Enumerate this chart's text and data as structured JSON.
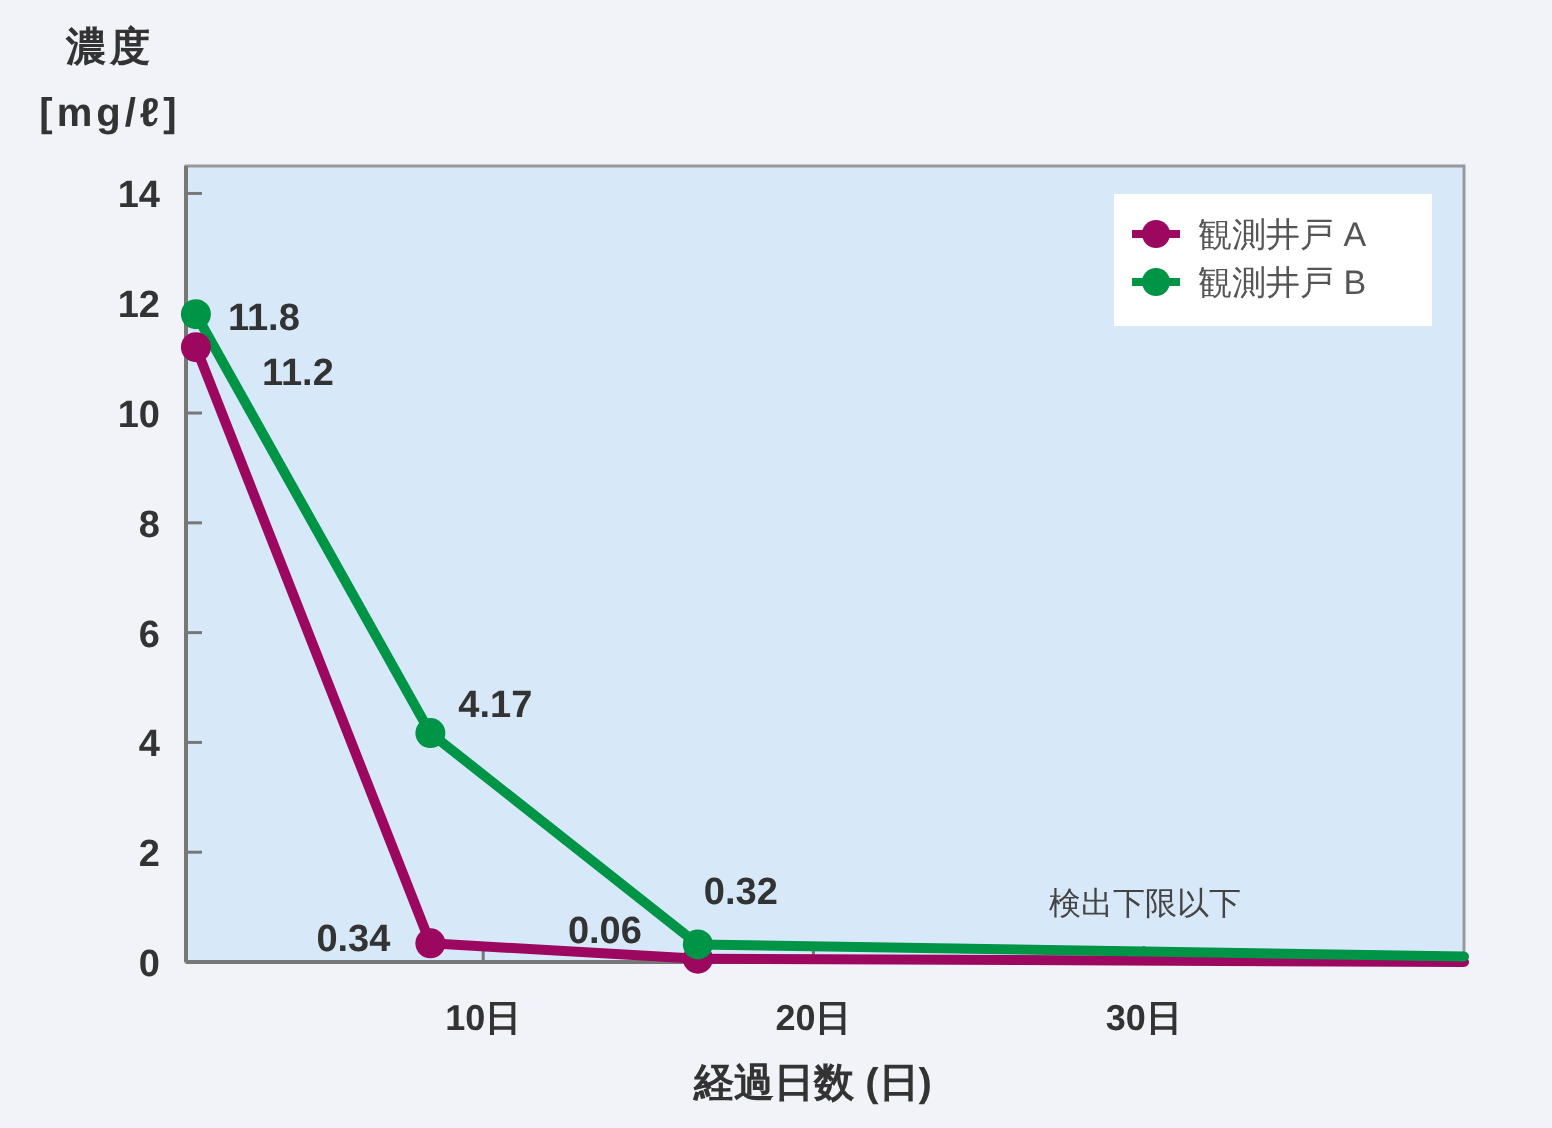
{
  "chart_data": {
    "type": "line",
    "xlabel": "経過日数 (日)",
    "ylabel": "濃度\n[mg/ℓ]",
    "xlim": [
      1,
      39.7
    ],
    "xticks": [
      {
        "value": 10,
        "label": "10日"
      },
      {
        "value": 20,
        "label": "20日"
      },
      {
        "value": 30,
        "label": "30日"
      }
    ],
    "ylim": [
      0,
      14.5
    ],
    "yticks": [
      0,
      2,
      4,
      6,
      8,
      10,
      12,
      14
    ],
    "grid": false,
    "legend": "top right",
    "marker": "circle",
    "line_style": "solid",
    "series": [
      {
        "name": "観測井戸 A",
        "color": "#9c0860",
        "x": [
          1.3,
          8.4,
          16.5
        ],
        "values": [
          11.2,
          0.34,
          0.06
        ],
        "value_labels": [
          "11.2",
          "0.34",
          "0.06"
        ]
      },
      {
        "name": "観測井戸 B",
        "color": "#009447",
        "x": [
          1.3,
          8.4,
          16.5
        ],
        "values": [
          11.8,
          4.17,
          0.32
        ],
        "value_labels": [
          "11.8",
          "4.17",
          "0.32"
        ]
      },
      {
        "color": "#9c0860",
        "x": [
          16.5,
          39.7
        ],
        "values": [
          0.06,
          0
        ],
        "marker": "none"
      },
      {
        "color": "#009447",
        "x": [
          16.5,
          39.7
        ],
        "values": [
          0.32,
          0.1
        ],
        "marker": "none"
      }
    ],
    "annotations": [
      "検出下限以下"
    ]
  }
}
